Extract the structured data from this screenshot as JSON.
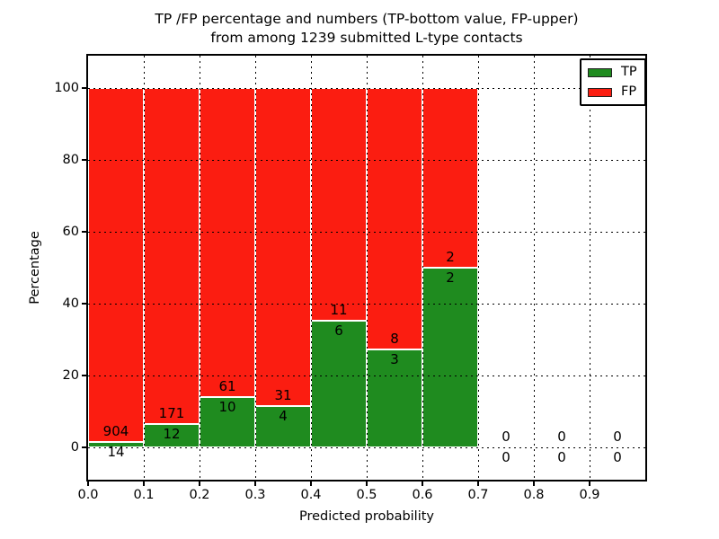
{
  "figure": {
    "title_line1": "TP /FP percentage and numbers (TP-bottom value, FP-upper)",
    "title_line2": "from among 1239 submitted L-type contacts"
  },
  "axes": {
    "xlabel": "Predicted probability",
    "ylabel": "Percentage",
    "xtick_labels": [
      "0.0",
      "0.1",
      "0.2",
      "0.3",
      "0.4",
      "0.5",
      "0.6",
      "0.7",
      "0.8",
      "0.9"
    ],
    "ytick_labels": [
      "0",
      "20",
      "40",
      "60",
      "80",
      "100"
    ],
    "xlim": [
      0,
      1
    ],
    "ylim": [
      -9,
      109
    ]
  },
  "legend": {
    "items": [
      {
        "label": "TP",
        "color": "#1f8b1f"
      },
      {
        "label": "FP",
        "color": "#fb1d11"
      }
    ]
  },
  "chart_data": {
    "type": "bar",
    "stacked": true,
    "note": "Stacked percentage bars per probability bin; green TP portion = TP/(TP+FP)*100, red FP fills to 100%. Numeric annotations show raw counts: FP above boundary, TP below.",
    "title": "TP /FP percentage and numbers (TP-bottom value, FP-upper) from among 1239 submitted L-type contacts",
    "xlabel": "Predicted probability",
    "ylabel": "Percentage",
    "xlim": [
      0,
      1
    ],
    "ylim": [
      -9,
      109
    ],
    "grid": "dotted black, both axes, drawn over bars",
    "legend_position": "upper right",
    "bin_width": 0.1,
    "bin_starts": [
      0.0,
      0.1,
      0.2,
      0.3,
      0.4,
      0.5,
      0.6,
      0.7,
      0.8,
      0.9
    ],
    "series": [
      {
        "name": "TP",
        "color": "#1f8b1f",
        "counts": [
          14,
          12,
          10,
          4,
          6,
          3,
          2,
          0,
          0,
          0
        ]
      },
      {
        "name": "FP",
        "color": "#fb1d11",
        "counts": [
          904,
          171,
          61,
          31,
          11,
          8,
          2,
          0,
          0,
          0
        ]
      }
    ],
    "tp_percent_of_bin": [
      1.5,
      6.6,
      14.1,
      11.4,
      35.3,
      27.3,
      50.0,
      null,
      null,
      null
    ],
    "total_submitted": 1239
  }
}
